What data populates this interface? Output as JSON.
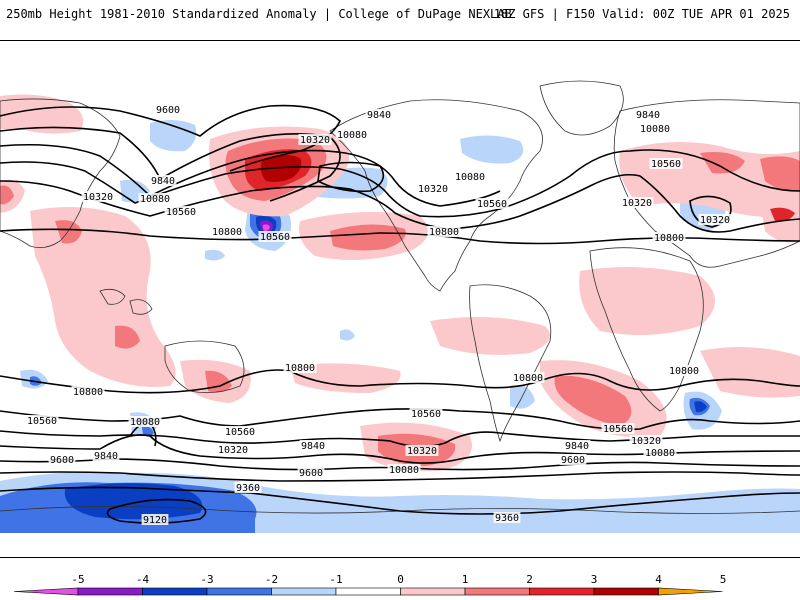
{
  "header": {
    "title": "250mb Height 1981-2010 Standardized Anomaly | College of DuPage NEXLAB",
    "run_info": "18Z GFS | F150 Valid: 00Z TUE APR 01 2025"
  },
  "colors": {
    "neg5": "#e64ee6",
    "neg4": "#8a1ac8",
    "neg3": "#0a3fc4",
    "neg2": "#3f73e6",
    "neg1": "#b9d5fa",
    "zero": "#ffffff",
    "pos1": "#fbc9cb",
    "pos2": "#f2787c",
    "pos3": "#e0252a",
    "pos4": "#b00000",
    "pos5": "#f5a000"
  },
  "colorbar": {
    "ticks": [
      "-5",
      "-4",
      "-3",
      "-2",
      "-1",
      "0",
      "1",
      "2",
      "3",
      "4",
      "5"
    ]
  },
  "contour_labels": [
    {
      "id": "nh-9600",
      "text": "9600"
    },
    {
      "id": "nh-9840-w",
      "text": "9840"
    },
    {
      "id": "nh-10080-w",
      "text": "10080"
    },
    {
      "id": "nh-10320-w",
      "text": "10320"
    },
    {
      "id": "nh-10560-w",
      "text": "10560"
    },
    {
      "id": "nh-10800-w",
      "text": "10800"
    },
    {
      "id": "np-10320",
      "text": "10320"
    },
    {
      "id": "np-10080",
      "text": "10080"
    },
    {
      "id": "np-9840",
      "text": "9840"
    },
    {
      "id": "low-10560",
      "text": "10560"
    },
    {
      "id": "na-10320",
      "text": "10320"
    },
    {
      "id": "na-10080",
      "text": "10080"
    },
    {
      "id": "na-10560",
      "text": "10560"
    },
    {
      "id": "na-10800",
      "text": "10800"
    },
    {
      "id": "eu-9840",
      "text": "9840"
    },
    {
      "id": "eu-10080",
      "text": "10080"
    },
    {
      "id": "eu-10560",
      "text": "10560"
    },
    {
      "id": "eu-10320-a",
      "text": "10320"
    },
    {
      "id": "eu-10320-b",
      "text": "10320"
    },
    {
      "id": "eu-10800",
      "text": "10800"
    },
    {
      "id": "sp-10800",
      "text": "10800"
    },
    {
      "id": "sw-10800",
      "text": "10800"
    },
    {
      "id": "sw-10560",
      "text": "10560"
    },
    {
      "id": "sw-10080",
      "text": "10080"
    },
    {
      "id": "sw-9840",
      "text": "9840"
    },
    {
      "id": "sw-9600",
      "text": "9600"
    },
    {
      "id": "sw-10560-b",
      "text": "10560"
    },
    {
      "id": "sw-10320",
      "text": "10320"
    },
    {
      "id": "sc-9840",
      "text": "9840"
    },
    {
      "id": "sc-9600",
      "text": "9600"
    },
    {
      "id": "sc-9360",
      "text": "9360"
    },
    {
      "id": "sc-10320",
      "text": "10320"
    },
    {
      "id": "sc-10080",
      "text": "10080"
    },
    {
      "id": "sc-10560",
      "text": "10560"
    },
    {
      "id": "sa-10800",
      "text": "10800"
    },
    {
      "id": "se-10560",
      "text": "10560"
    },
    {
      "id": "se-10320",
      "text": "10320"
    },
    {
      "id": "se-10080",
      "text": "10080"
    },
    {
      "id": "se-9840",
      "text": "9840"
    },
    {
      "id": "se-9600",
      "text": "9600"
    },
    {
      "id": "se-10800",
      "text": "10800"
    },
    {
      "id": "ant-9360",
      "text": "9360"
    },
    {
      "id": "ant-9120",
      "text": "9120"
    }
  ]
}
